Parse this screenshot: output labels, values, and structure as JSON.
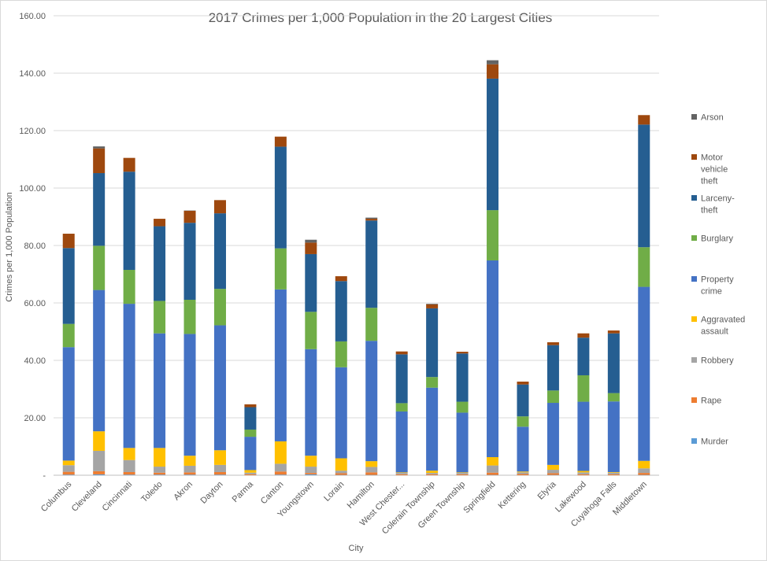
{
  "chart_data": {
    "type": "bar",
    "stacked": true,
    "title": "2017 Crimes per 1,000 Population in the 20 Largest Cities",
    "xlabel": "City",
    "ylabel": "Crimes per 1,000 Population",
    "ylim": [
      0,
      160
    ],
    "yticks": [
      "-",
      "20.00",
      "40.00",
      "60.00",
      "80.00",
      "100.00",
      "120.00",
      "140.00",
      "160.00"
    ],
    "grid": true,
    "legend_position": "right",
    "categories": [
      "Columbus",
      "Cleveland",
      "Cincinnati",
      "Toledo",
      "Akron",
      "Dayton",
      "Parma",
      "Canton",
      "Youngstown",
      "Lorain",
      "Hamilton",
      "West Chester...",
      "Colerain Township",
      "Green Township",
      "Springfield",
      "Kettering",
      "Elyria",
      "Lakewood",
      "Cuyahoga Falls",
      "Middletown"
    ],
    "series": [
      {
        "name": "Murder",
        "color": "#5b9bd5",
        "values": [
          0.2,
          0.3,
          0.2,
          0.2,
          0.2,
          0.2,
          0.0,
          0.2,
          0.3,
          0.1,
          0.1,
          0.0,
          0.0,
          0.0,
          0.1,
          0.0,
          0.1,
          0.0,
          0.0,
          0.1
        ]
      },
      {
        "name": "Rape",
        "color": "#ed7d31",
        "values": [
          1.0,
          1.1,
          0.9,
          0.7,
          0.8,
          0.9,
          0.3,
          1.1,
          0.5,
          0.6,
          0.9,
          0.3,
          0.3,
          0.3,
          0.8,
          0.4,
          0.6,
          0.3,
          0.3,
          0.7
        ]
      },
      {
        "name": "Robbery",
        "color": "#a5a5a5",
        "values": [
          2.3,
          7.1,
          4.2,
          2.1,
          2.3,
          2.5,
          0.6,
          2.7,
          2.2,
          0.9,
          1.9,
          0.5,
          0.5,
          0.5,
          2.5,
          0.6,
          1.2,
          0.7,
          0.6,
          1.6
        ]
      },
      {
        "name": "Aggravated assault",
        "color": "#ffc000",
        "values": [
          1.6,
          6.8,
          4.2,
          6.5,
          3.5,
          5.1,
          0.9,
          7.8,
          3.8,
          4.3,
          2.0,
          0.2,
          0.8,
          0.2,
          2.9,
          0.3,
          1.7,
          0.5,
          0.2,
          2.6
        ]
      },
      {
        "name": "Property crime",
        "color": "#4472c4",
        "values": [
          39.5,
          49.2,
          50.2,
          39.9,
          42.4,
          43.5,
          11.6,
          52.9,
          37.1,
          31.7,
          41.9,
          21.2,
          28.9,
          20.8,
          68.5,
          15.6,
          21.6,
          24.1,
          24.6,
          60.6
        ]
      },
      {
        "name": "Burglary",
        "color": "#70ad47",
        "values": [
          8.1,
          15.4,
          11.8,
          11.3,
          11.9,
          12.7,
          2.5,
          14.3,
          13.0,
          9.0,
          11.5,
          2.9,
          3.7,
          3.8,
          17.5,
          3.6,
          4.3,
          9.2,
          2.9,
          13.8
        ]
      },
      {
        "name": "Larceny-theft",
        "color": "#255e91",
        "values": [
          26.4,
          25.3,
          34.2,
          26.0,
          26.8,
          26.3,
          7.8,
          35.4,
          20.1,
          21.0,
          30.4,
          17.0,
          23.9,
          16.8,
          45.8,
          11.1,
          15.8,
          13.1,
          20.8,
          42.7
        ]
      },
      {
        "name": "Motor vehicle theft",
        "color": "#9e480e",
        "values": [
          5.0,
          8.6,
          4.8,
          2.6,
          4.2,
          4.6,
          1.0,
          3.5,
          4.0,
          1.7,
          0.6,
          1.0,
          1.4,
          0.6,
          5.0,
          1.0,
          1.0,
          1.5,
          1.0,
          3.3
        ]
      },
      {
        "name": "Arson",
        "color": "#636363",
        "values": [
          0.0,
          0.7,
          0.0,
          0.0,
          0.1,
          0.0,
          0.0,
          0.0,
          1.0,
          0.0,
          0.4,
          0.0,
          0.2,
          0.0,
          1.4,
          0.0,
          0.0,
          0.0,
          0.0,
          0.0
        ]
      }
    ]
  }
}
